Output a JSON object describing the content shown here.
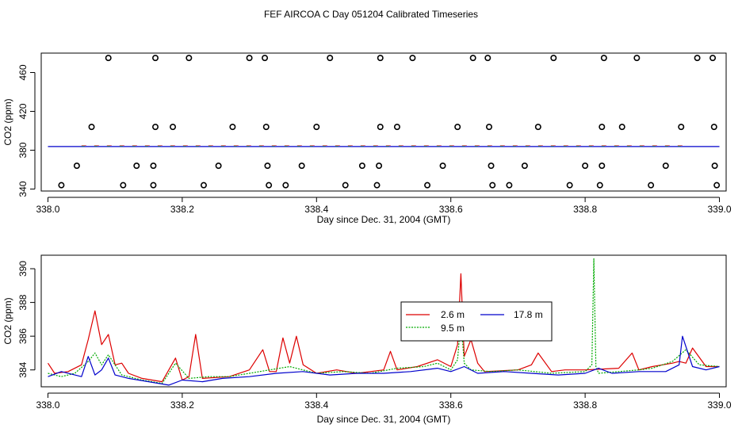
{
  "figure_title": "FEF AIRCOA C  Day 051204  Calibrated Timeseries",
  "chart_data": [
    {
      "type": "scatter",
      "title": "FEF AIRCOA C  Day 051204  Calibrated Timeseries",
      "xlabel": "Day since Dec. 31, 2004 (GMT)",
      "ylabel": "CO2 (ppm)",
      "xlim": [
        337.99,
        339.01
      ],
      "ylim": [
        338,
        480
      ],
      "xticks": [
        338.0,
        338.2,
        338.4,
        338.6,
        338.8,
        339.0
      ],
      "xtick_labels": [
        "338.0",
        "338.2",
        "338.4",
        "338.6",
        "338.8",
        "339.0"
      ],
      "yticks": [
        340,
        380,
        420,
        460
      ],
      "ytick_labels": [
        "340",
        "380",
        "420",
        "460"
      ],
      "points": [
        {
          "x": 338.09,
          "y": 475
        },
        {
          "x": 338.16,
          "y": 475
        },
        {
          "x": 338.21,
          "y": 475
        },
        {
          "x": 338.3,
          "y": 475
        },
        {
          "x": 338.323,
          "y": 475
        },
        {
          "x": 338.42,
          "y": 475
        },
        {
          "x": 338.495,
          "y": 475
        },
        {
          "x": 338.543,
          "y": 475
        },
        {
          "x": 338.633,
          "y": 475
        },
        {
          "x": 338.655,
          "y": 475
        },
        {
          "x": 338.753,
          "y": 475
        },
        {
          "x": 338.828,
          "y": 475
        },
        {
          "x": 338.877,
          "y": 475
        },
        {
          "x": 338.967,
          "y": 475
        },
        {
          "x": 338.99,
          "y": 475
        },
        {
          "x": 338.065,
          "y": 404
        },
        {
          "x": 338.16,
          "y": 404
        },
        {
          "x": 338.186,
          "y": 404
        },
        {
          "x": 338.275,
          "y": 404
        },
        {
          "x": 338.325,
          "y": 404
        },
        {
          "x": 338.4,
          "y": 404
        },
        {
          "x": 338.495,
          "y": 404
        },
        {
          "x": 338.52,
          "y": 404
        },
        {
          "x": 338.61,
          "y": 404
        },
        {
          "x": 338.657,
          "y": 404
        },
        {
          "x": 338.73,
          "y": 404
        },
        {
          "x": 338.825,
          "y": 404
        },
        {
          "x": 338.855,
          "y": 404
        },
        {
          "x": 338.943,
          "y": 404
        },
        {
          "x": 338.992,
          "y": 404
        },
        {
          "x": 338.043,
          "y": 364
        },
        {
          "x": 338.132,
          "y": 364
        },
        {
          "x": 338.157,
          "y": 364
        },
        {
          "x": 338.254,
          "y": 364
        },
        {
          "x": 338.327,
          "y": 364
        },
        {
          "x": 338.378,
          "y": 364
        },
        {
          "x": 338.468,
          "y": 364
        },
        {
          "x": 338.493,
          "y": 364
        },
        {
          "x": 338.588,
          "y": 364
        },
        {
          "x": 338.66,
          "y": 364
        },
        {
          "x": 338.71,
          "y": 364
        },
        {
          "x": 338.8,
          "y": 364
        },
        {
          "x": 338.825,
          "y": 364
        },
        {
          "x": 338.92,
          "y": 364
        },
        {
          "x": 338.993,
          "y": 364
        },
        {
          "x": 338.02,
          "y": 344
        },
        {
          "x": 338.112,
          "y": 344
        },
        {
          "x": 338.157,
          "y": 344
        },
        {
          "x": 338.232,
          "y": 344
        },
        {
          "x": 338.329,
          "y": 344
        },
        {
          "x": 338.354,
          "y": 344
        },
        {
          "x": 338.443,
          "y": 344
        },
        {
          "x": 338.49,
          "y": 344
        },
        {
          "x": 338.565,
          "y": 344
        },
        {
          "x": 338.662,
          "y": 344
        },
        {
          "x": 338.687,
          "y": 344
        },
        {
          "x": 338.777,
          "y": 344
        },
        {
          "x": 338.822,
          "y": 344
        },
        {
          "x": 338.898,
          "y": 344
        },
        {
          "x": 338.996,
          "y": 344
        }
      ],
      "baseline": {
        "name": "ambient",
        "x": [
          338.0,
          339.0
        ],
        "y": [
          383.8,
          383.8
        ]
      }
    },
    {
      "type": "line",
      "xlabel": "Day since Dec. 31, 2004 (GMT)",
      "ylabel": "CO2 (ppm)",
      "xlim": [
        337.99,
        339.01
      ],
      "ylim": [
        383,
        390.8
      ],
      "xticks": [
        338.0,
        338.2,
        338.4,
        338.6,
        338.8,
        339.0
      ],
      "xtick_labels": [
        "338.0",
        "338.2",
        "338.4",
        "338.6",
        "338.8",
        "339.0"
      ],
      "yticks": [
        384,
        386,
        388,
        390
      ],
      "ytick_labels": [
        "384",
        "386",
        "388",
        "390"
      ],
      "legend": [
        "2.6 m",
        "9.5 m",
        "17.8 m"
      ],
      "series": [
        {
          "name": "2.6 m",
          "color": "#dd0000",
          "x": [
            338.0,
            338.01,
            338.03,
            338.05,
            338.06,
            338.07,
            338.08,
            338.09,
            338.1,
            338.11,
            338.12,
            338.14,
            338.17,
            338.19,
            338.2,
            338.21,
            338.22,
            338.23,
            338.27,
            338.3,
            338.32,
            338.33,
            338.34,
            338.35,
            338.36,
            338.37,
            338.38,
            338.4,
            338.43,
            338.46,
            338.5,
            338.51,
            338.52,
            338.55,
            338.58,
            338.6,
            338.61,
            338.615,
            338.62,
            338.63,
            338.64,
            338.65,
            338.7,
            338.72,
            338.73,
            338.75,
            338.77,
            338.8,
            338.85,
            338.87,
            338.88,
            338.9,
            338.93,
            338.94,
            338.95,
            338.96,
            338.98,
            339.0
          ],
          "y": [
            384.4,
            383.8,
            383.9,
            384.3,
            385.8,
            387.5,
            385.5,
            386.1,
            384.3,
            384.4,
            383.8,
            383.5,
            383.3,
            384.7,
            383.4,
            383.6,
            386.1,
            383.5,
            383.6,
            384.0,
            385.2,
            383.9,
            383.9,
            385.9,
            384.4,
            386.0,
            384.3,
            383.8,
            384.0,
            383.8,
            384.0,
            385.1,
            384.0,
            384.2,
            384.6,
            384.2,
            385.5,
            389.7,
            384.8,
            385.8,
            384.4,
            383.9,
            384.0,
            384.3,
            385.0,
            383.9,
            384.0,
            384.0,
            384.1,
            385.0,
            384.0,
            384.2,
            384.4,
            384.5,
            384.4,
            385.3,
            384.2,
            384.2
          ]
        },
        {
          "name": "9.5 m",
          "color": "#00aa00",
          "x": [
            338.0,
            338.02,
            338.04,
            338.06,
            338.07,
            338.08,
            338.09,
            338.11,
            338.14,
            338.17,
            338.19,
            338.21,
            338.24,
            338.27,
            338.3,
            338.33,
            338.36,
            338.4,
            338.44,
            338.48,
            338.52,
            338.56,
            338.58,
            338.6,
            338.61,
            338.615,
            338.62,
            338.63,
            338.66,
            338.7,
            338.75,
            338.8,
            338.81,
            338.813,
            338.816,
            338.82,
            338.85,
            338.88,
            338.9,
            338.93,
            338.95,
            338.97,
            339.0
          ],
          "y": [
            383.8,
            383.6,
            383.8,
            384.5,
            385.0,
            384.3,
            384.9,
            383.7,
            383.4,
            383.2,
            384.4,
            383.5,
            383.6,
            383.6,
            383.8,
            384.0,
            384.2,
            383.8,
            383.9,
            383.8,
            384.1,
            384.2,
            384.4,
            384.0,
            384.6,
            387.0,
            384.4,
            384.0,
            383.9,
            384.0,
            383.8,
            383.9,
            384.3,
            390.6,
            384.2,
            383.8,
            383.9,
            384.0,
            384.1,
            384.5,
            385.2,
            384.3,
            384.2
          ]
        },
        {
          "name": "17.8 m",
          "color": "#0000cc",
          "x": [
            338.0,
            338.02,
            338.04,
            338.05,
            338.06,
            338.07,
            338.08,
            338.09,
            338.1,
            338.12,
            338.15,
            338.18,
            338.2,
            338.23,
            338.26,
            338.3,
            338.34,
            338.38,
            338.42,
            338.46,
            338.5,
            338.54,
            338.58,
            338.6,
            338.62,
            338.64,
            338.68,
            338.72,
            338.76,
            338.8,
            338.82,
            338.84,
            338.88,
            338.92,
            338.94,
            338.945,
            338.96,
            338.98,
            339.0
          ],
          "y": [
            383.6,
            383.9,
            383.7,
            383.6,
            384.8,
            383.7,
            384.0,
            384.7,
            383.7,
            383.5,
            383.3,
            383.1,
            383.4,
            383.3,
            383.5,
            383.6,
            383.8,
            383.9,
            383.7,
            383.8,
            383.8,
            383.9,
            384.1,
            383.9,
            384.2,
            383.8,
            383.9,
            383.8,
            383.7,
            383.8,
            384.1,
            383.8,
            383.9,
            383.9,
            384.3,
            386.0,
            384.2,
            384.0,
            384.2
          ]
        }
      ]
    }
  ]
}
